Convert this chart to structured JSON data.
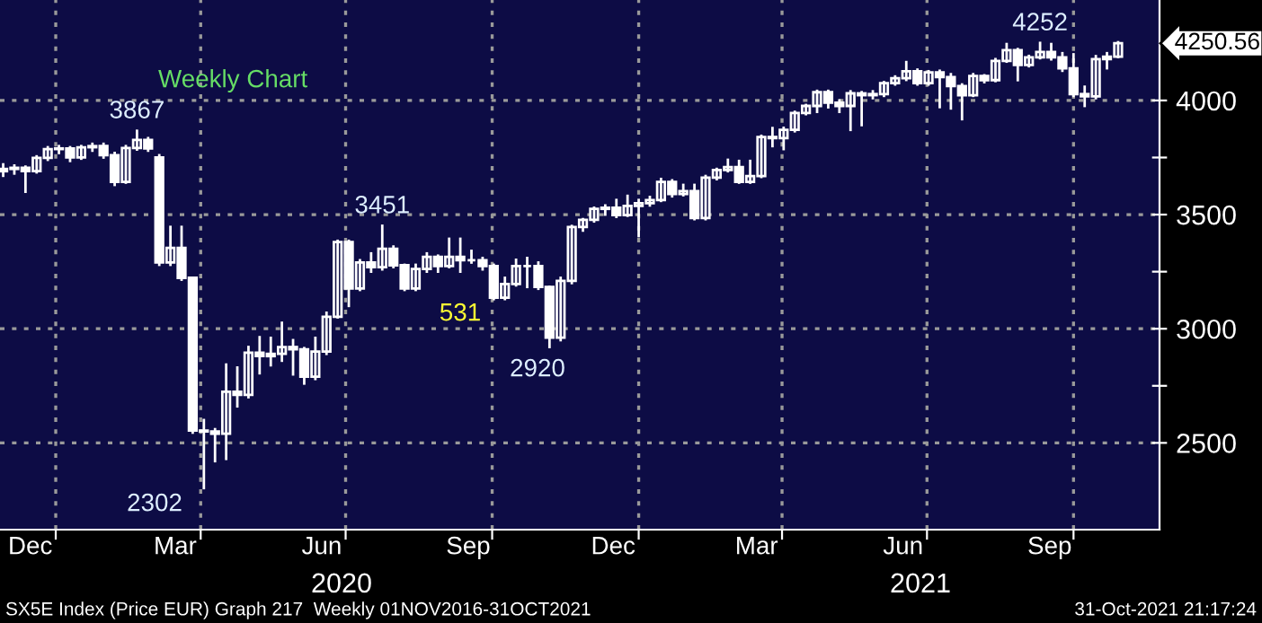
{
  "chart_data": {
    "type": "candlestick",
    "title": "Weekly Chart",
    "x": [
      "2019-11-29",
      "2019-12-06",
      "2019-12-13",
      "2019-12-20",
      "2019-12-27",
      "2020-01-03",
      "2020-01-10",
      "2020-01-17",
      "2020-01-24",
      "2020-01-31",
      "2020-02-07",
      "2020-02-14",
      "2020-02-21",
      "2020-02-28",
      "2020-03-06",
      "2020-03-13",
      "2020-03-20",
      "2020-03-27",
      "2020-04-03",
      "2020-04-10",
      "2020-04-17",
      "2020-04-24",
      "2020-05-01",
      "2020-05-08",
      "2020-05-15",
      "2020-05-22",
      "2020-05-29",
      "2020-06-05",
      "2020-06-12",
      "2020-06-19",
      "2020-06-26",
      "2020-07-03",
      "2020-07-10",
      "2020-07-17",
      "2020-07-24",
      "2020-07-31",
      "2020-08-07",
      "2020-08-14",
      "2020-08-21",
      "2020-08-28",
      "2020-09-04",
      "2020-09-11",
      "2020-09-18",
      "2020-09-25",
      "2020-10-02",
      "2020-10-09",
      "2020-10-16",
      "2020-10-23",
      "2020-10-30",
      "2020-11-06",
      "2020-11-13",
      "2020-11-20",
      "2020-11-27",
      "2020-12-04",
      "2020-12-11",
      "2020-12-18",
      "2020-12-25",
      "2021-01-01",
      "2021-01-08",
      "2021-01-15",
      "2021-01-22",
      "2021-01-29",
      "2021-02-05",
      "2021-02-12",
      "2021-02-19",
      "2021-02-26",
      "2021-03-05",
      "2021-03-12",
      "2021-03-19",
      "2021-03-26",
      "2021-04-02",
      "2021-04-09",
      "2021-04-16",
      "2021-04-23",
      "2021-04-30",
      "2021-05-07",
      "2021-05-14",
      "2021-05-21",
      "2021-05-28",
      "2021-06-04",
      "2021-06-11",
      "2021-06-18",
      "2021-06-25",
      "2021-07-02",
      "2021-07-09",
      "2021-07-16",
      "2021-07-23",
      "2021-07-30",
      "2021-08-06",
      "2021-08-13",
      "2021-08-20",
      "2021-08-27",
      "2021-09-03",
      "2021-09-10",
      "2021-09-17",
      "2021-09-24",
      "2021-10-01",
      "2021-10-08",
      "2021-10-15",
      "2021-10-22",
      "2021-10-29"
    ],
    "ohlc": [
      [
        3690,
        3720,
        3670,
        3700
      ],
      [
        3700,
        3715,
        3680,
        3705
      ],
      [
        3705,
        3710,
        3600,
        3690
      ],
      [
        3690,
        3755,
        3685,
        3748
      ],
      [
        3748,
        3795,
        3740,
        3787
      ],
      [
        3787,
        3800,
        3770,
        3790
      ],
      [
        3790,
        3795,
        3735,
        3750
      ],
      [
        3750,
        3800,
        3745,
        3795
      ],
      [
        3795,
        3810,
        3780,
        3800
      ],
      [
        3800,
        3810,
        3750,
        3760
      ],
      [
        3760,
        3770,
        3630,
        3643
      ],
      [
        3643,
        3800,
        3640,
        3792
      ],
      [
        3792,
        3867,
        3785,
        3827
      ],
      [
        3827,
        3835,
        3780,
        3790
      ],
      [
        3750,
        3760,
        3280,
        3290
      ],
      [
        3290,
        3446,
        3280,
        3354
      ],
      [
        3354,
        3446,
        3215,
        3223
      ],
      [
        3223,
        3223,
        2545,
        2554
      ],
      [
        2554,
        2600,
        2302,
        2550
      ],
      [
        2550,
        2560,
        2420,
        2540
      ],
      [
        2540,
        2843,
        2430,
        2724
      ],
      [
        2724,
        2830,
        2660,
        2710
      ],
      [
        2710,
        2920,
        2700,
        2895
      ],
      [
        2895,
        2963,
        2805,
        2880
      ],
      [
        2880,
        2960,
        2840,
        2890
      ],
      [
        2890,
        3026,
        2860,
        2920
      ],
      [
        2920,
        2950,
        2800,
        2910
      ],
      [
        2910,
        2915,
        2760,
        2790
      ],
      [
        2790,
        2960,
        2780,
        2900
      ],
      [
        2900,
        3070,
        2890,
        3052
      ],
      [
        3052,
        3385,
        3050,
        3380
      ],
      [
        3380,
        3385,
        3100,
        3176
      ],
      [
        3176,
        3300,
        3170,
        3290
      ],
      [
        3290,
        3330,
        3250,
        3270
      ],
      [
        3270,
        3451,
        3260,
        3350
      ],
      [
        3350,
        3360,
        3270,
        3278
      ],
      [
        3278,
        3280,
        3170,
        3176
      ],
      [
        3176,
        3280,
        3170,
        3262
      ],
      [
        3262,
        3330,
        3250,
        3315
      ],
      [
        3315,
        3320,
        3250,
        3275
      ],
      [
        3275,
        3394,
        3270,
        3315
      ],
      [
        3315,
        3394,
        3250,
        3300
      ],
      [
        3300,
        3341,
        3290,
        3300
      ],
      [
        3300,
        3310,
        3260,
        3275
      ],
      [
        3275,
        3280,
        3130,
        3136
      ],
      [
        3136,
        3223,
        3130,
        3196
      ],
      [
        3196,
        3302,
        3190,
        3275
      ],
      [
        3275,
        3310,
        3183,
        3275
      ],
      [
        3275,
        3290,
        3175,
        3183
      ],
      [
        3183,
        3183,
        2920,
        2961
      ],
      [
        2961,
        3223,
        2950,
        3210
      ],
      [
        3210,
        3450,
        3200,
        3446
      ],
      [
        3446,
        3480,
        3430,
        3477
      ],
      [
        3477,
        3530,
        3470,
        3525
      ],
      [
        3525,
        3540,
        3500,
        3530
      ],
      [
        3530,
        3564,
        3490,
        3498
      ],
      [
        3498,
        3582,
        3495,
        3538
      ],
      [
        3538,
        3564,
        3406,
        3550
      ],
      [
        3550,
        3577,
        3540,
        3564
      ],
      [
        3564,
        3656,
        3560,
        3643
      ],
      [
        3643,
        3650,
        3580,
        3590
      ],
      [
        3590,
        3630,
        3585,
        3603
      ],
      [
        3603,
        3630,
        3480,
        3485
      ],
      [
        3485,
        3669,
        3480,
        3662
      ],
      [
        3662,
        3700,
        3655,
        3695
      ],
      [
        3695,
        3740,
        3690,
        3708
      ],
      [
        3708,
        3735,
        3640,
        3643
      ],
      [
        3643,
        3735,
        3640,
        3669
      ],
      [
        3669,
        3845,
        3665,
        3840
      ],
      [
        3840,
        3879,
        3800,
        3835
      ],
      [
        3835,
        3880,
        3787,
        3871
      ],
      [
        3871,
        3950,
        3865,
        3945
      ],
      [
        3945,
        3980,
        3940,
        3976
      ],
      [
        3976,
        4042,
        3950,
        4036
      ],
      [
        4036,
        4042,
        3970,
        3990
      ],
      [
        3990,
        4000,
        3950,
        3976
      ],
      [
        3976,
        4040,
        3871,
        4031
      ],
      [
        4031,
        4036,
        3892,
        4023
      ],
      [
        4023,
        4040,
        4010,
        4028
      ],
      [
        4028,
        4080,
        4020,
        4076
      ],
      [
        4076,
        4105,
        4070,
        4097
      ],
      [
        4097,
        4168,
        4090,
        4128
      ],
      [
        4128,
        4135,
        4070,
        4076
      ],
      [
        4076,
        4128,
        4070,
        4123
      ],
      [
        4123,
        4130,
        3971,
        4102
      ],
      [
        4102,
        4115,
        3965,
        4063
      ],
      [
        4063,
        4070,
        3918,
        4023
      ],
      [
        4023,
        4115,
        4020,
        4107
      ],
      [
        4107,
        4110,
        4080,
        4089
      ],
      [
        4089,
        4181,
        4085,
        4173
      ],
      [
        4173,
        4247,
        4170,
        4220
      ],
      [
        4220,
        4225,
        4089,
        4155
      ],
      [
        4155,
        4195,
        4150,
        4189
      ],
      [
        4189,
        4252,
        4185,
        4212
      ],
      [
        4212,
        4247,
        4180,
        4189
      ],
      [
        4189,
        4207,
        4130,
        4141
      ],
      [
        4141,
        4202,
        4020,
        4028
      ],
      [
        4028,
        4060,
        3976,
        4018
      ],
      [
        4018,
        4194,
        4010,
        4181
      ],
      [
        4181,
        4207,
        4141,
        4192
      ],
      [
        4192,
        4255,
        4190,
        4250.56
      ]
    ],
    "color": "#ffffff",
    "xlim": [
      "2019-11-27",
      "2021-11-24"
    ],
    "xticks": [
      {
        "value": "2019-12-16",
        "label": "Dec"
      },
      {
        "value": "2020-01-01",
        "label": null
      },
      {
        "value": "2020-03-16",
        "label": "Mar"
      },
      {
        "value": "2020-04-01",
        "label": null
      },
      {
        "value": "2020-06-16",
        "label": "Jun"
      },
      {
        "value": "2020-07-01",
        "label": null
      },
      {
        "value": "2020-09-16",
        "label": "Sep"
      },
      {
        "value": "2020-10-01",
        "label": null
      },
      {
        "value": "2020-12-16",
        "label": "Dec"
      },
      {
        "value": "2021-01-01",
        "label": null
      },
      {
        "value": "2021-03-16",
        "label": "Mar"
      },
      {
        "value": "2021-04-01",
        "label": null
      },
      {
        "value": "2021-06-16",
        "label": "Jun"
      },
      {
        "value": "2021-07-01",
        "label": null
      },
      {
        "value": "2021-09-16",
        "label": "Sep"
      },
      {
        "value": "2021-10-01",
        "label": null
      }
    ],
    "ylim": [
      2120,
      4440
    ],
    "yticks": [
      2500,
      {
        "value": 2750,
        "label": null
      },
      3000,
      {
        "value": 3250,
        "label": null
      },
      3500,
      {
        "value": 3750,
        "label": null
      },
      4000
    ],
    "grid": true,
    "annotations": [
      {
        "text": "3867",
        "x": "2020-02-21",
        "y": 3867
      },
      "2302",
      {
        "text": "3451",
        "x": "2020-07-24",
        "y": 3451
      },
      "531",
      "2920",
      {
        "text": "4252",
        "x": "2021-09-10",
        "y": 4252
      },
      {
        "text": "4250.56",
        "x": "2021-10-29",
        "y": 4250.56
      },
      "2020",
      "2021",
      "SX5E Index (Price EUR) Graph 217  Weekly 01NOV2016-31OCT2021",
      "31-Oct-2021 21:17:24"
    ]
  }
}
